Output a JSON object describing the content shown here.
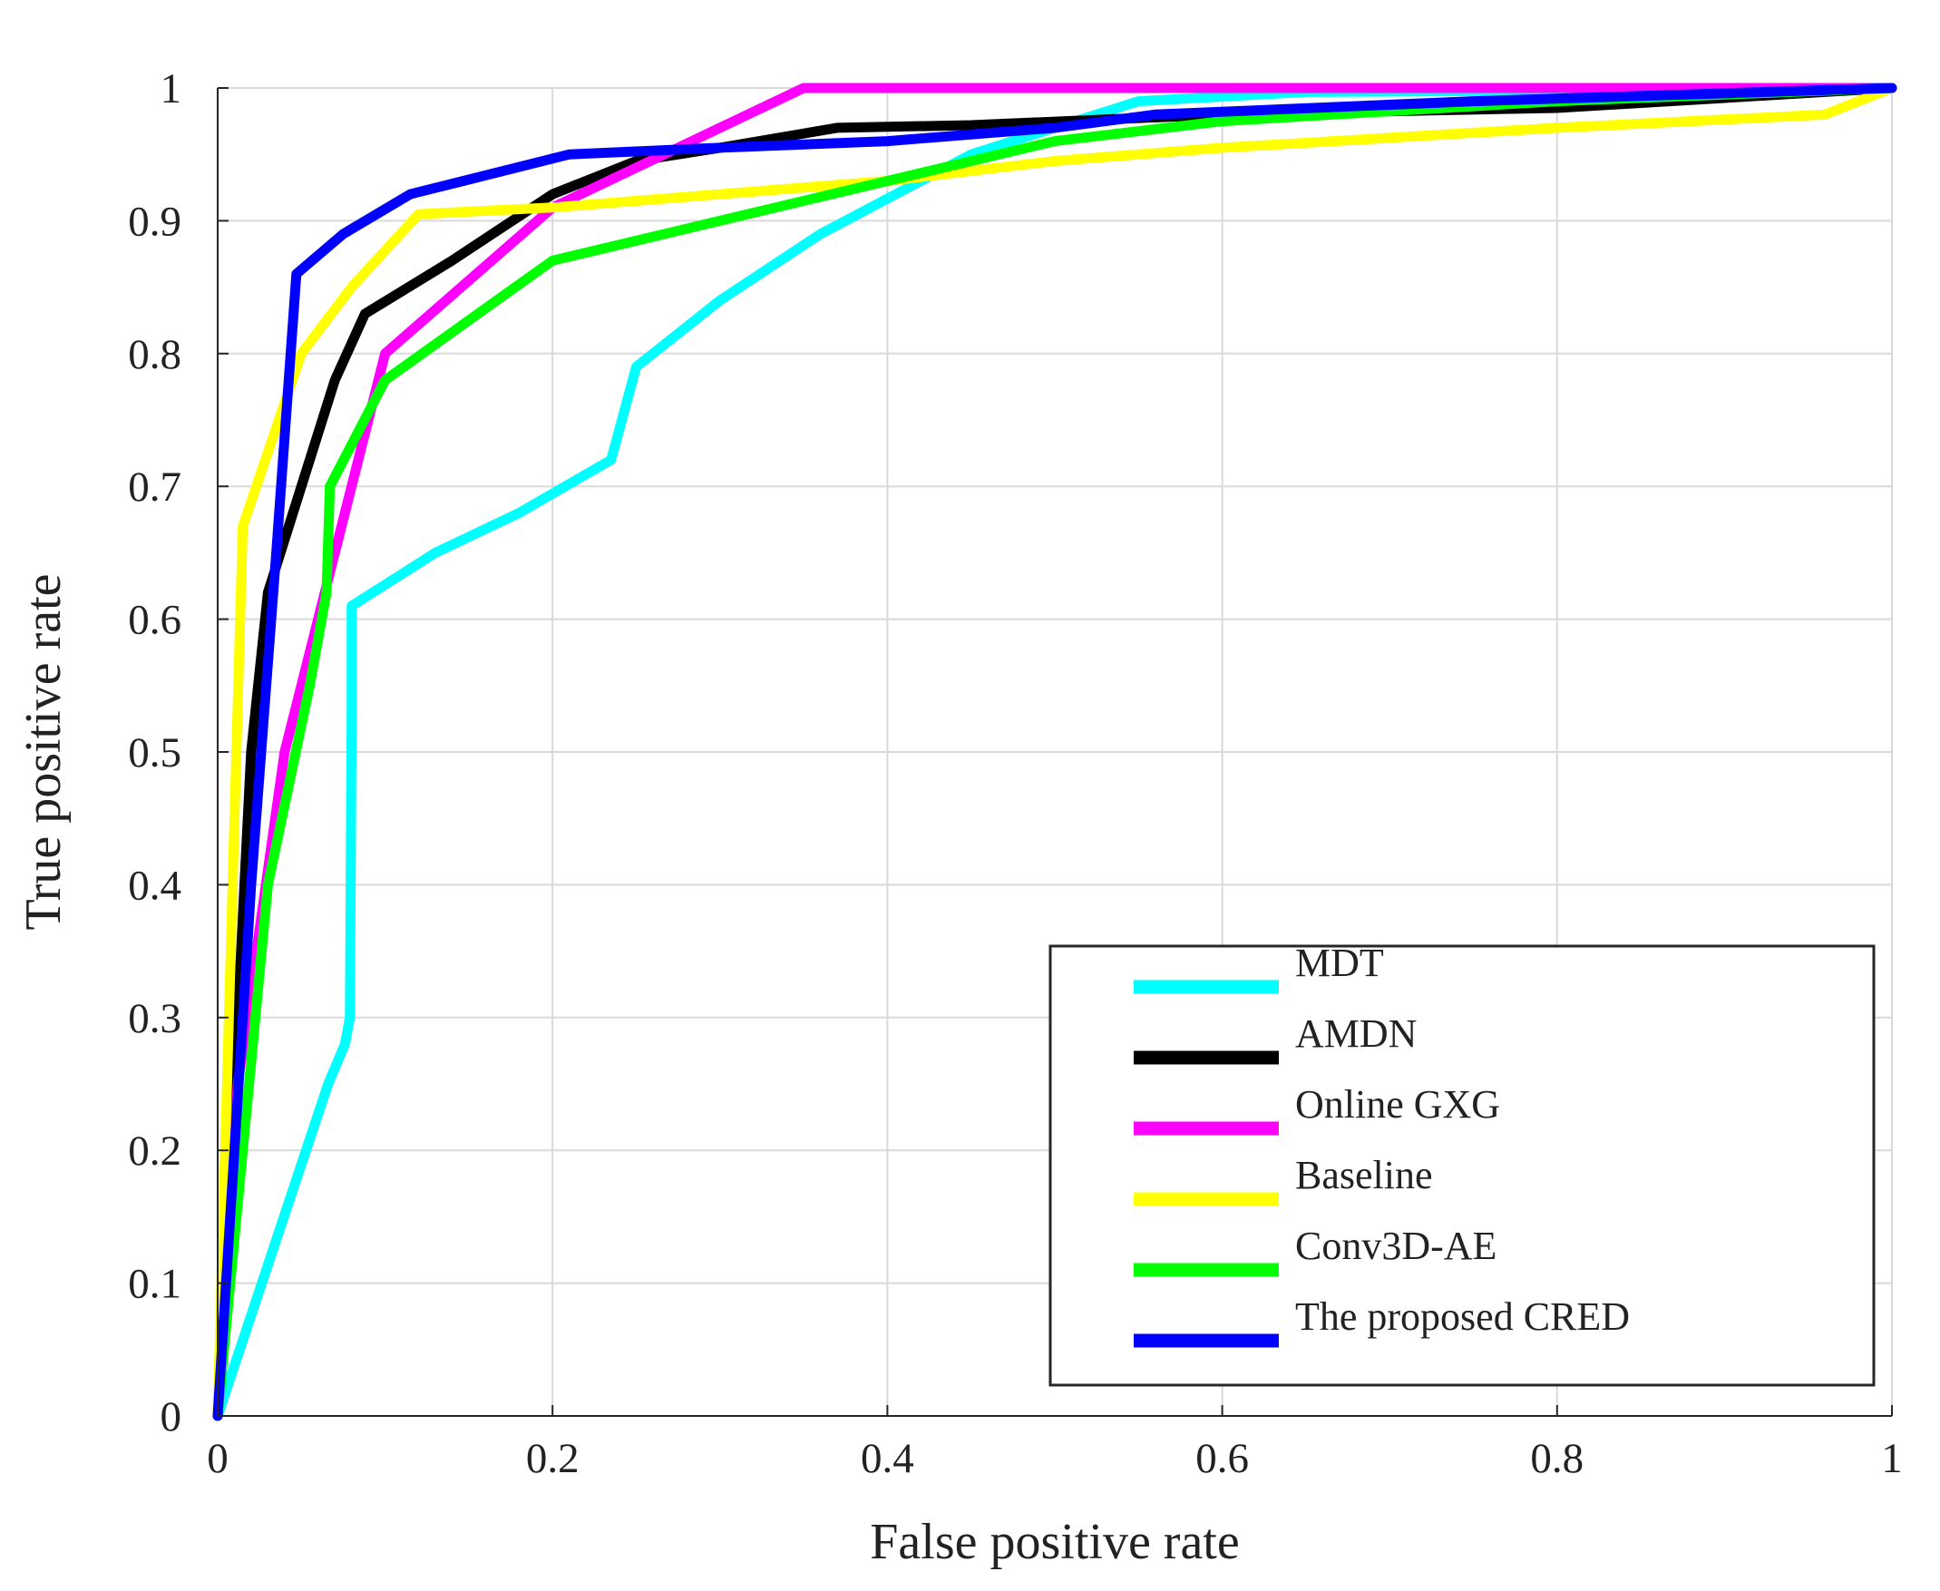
{
  "chart_data": {
    "type": "line",
    "title": "",
    "xlabel": "False positive rate",
    "ylabel": "True positive rate",
    "xlim": [
      0,
      1
    ],
    "ylim": [
      0,
      1
    ],
    "xticks": [
      "0",
      "0.2",
      "0.4",
      "0.6",
      "0.8",
      "1"
    ],
    "yticks": [
      "0",
      "0.1",
      "0.2",
      "0.3",
      "0.4",
      "0.5",
      "0.6",
      "0.7",
      "0.8",
      "0.9",
      "1"
    ],
    "grid": true,
    "legend_position": "bottom-right",
    "series": [
      {
        "name": "MDT",
        "color": "#00ffff",
        "x": [
          0,
          0.066,
          0.076,
          0.079,
          0.08,
          0.08,
          0.13,
          0.18,
          0.235,
          0.25,
          0.3,
          0.36,
          0.45,
          0.55,
          0.65,
          0.8,
          1
        ],
        "y": [
          0,
          0.25,
          0.28,
          0.3,
          0.53,
          0.61,
          0.65,
          0.68,
          0.72,
          0.79,
          0.84,
          0.89,
          0.95,
          0.99,
          0.997,
          0.998,
          1
        ]
      },
      {
        "name": "AMDN",
        "color": "#000000",
        "x": [
          0,
          0.02,
          0.03,
          0.05,
          0.07,
          0.088,
          0.14,
          0.2,
          0.25,
          0.3,
          0.37,
          0.45,
          0.6,
          0.8,
          1
        ],
        "y": [
          0,
          0.5,
          0.62,
          0.7,
          0.78,
          0.83,
          0.87,
          0.92,
          0.945,
          0.955,
          0.97,
          0.972,
          0.98,
          0.985,
          1
        ]
      },
      {
        "name": "Online GXG",
        "color": "#ff00ff",
        "x": [
          0,
          0.012,
          0.04,
          0.07,
          0.1,
          0.2,
          0.3,
          0.35,
          0.5,
          0.75,
          1
        ],
        "y": [
          0,
          0.25,
          0.5,
          0.65,
          0.8,
          0.91,
          0.97,
          1,
          1,
          1,
          1
        ]
      },
      {
        "name": "Baseline",
        "color": "#ffff00",
        "x": [
          0,
          0.01,
          0.015,
          0.05,
          0.08,
          0.12,
          0.2,
          0.3,
          0.4,
          0.5,
          0.6,
          0.8,
          0.96,
          1
        ],
        "y": [
          0,
          0.45,
          0.67,
          0.8,
          0.85,
          0.905,
          0.91,
          0.92,
          0.93,
          0.945,
          0.955,
          0.97,
          0.98,
          1
        ]
      },
      {
        "name": "Conv3D-AE",
        "color": "#00ff00",
        "x": [
          0,
          0.03,
          0.055,
          0.065,
          0.067,
          0.1,
          0.2,
          0.3,
          0.4,
          0.5,
          0.6,
          0.8,
          1
        ],
        "y": [
          0,
          0.4,
          0.55,
          0.62,
          0.7,
          0.78,
          0.87,
          0.9,
          0.93,
          0.96,
          0.975,
          0.99,
          1
        ]
      },
      {
        "name": "The proposed CRED",
        "color": "#0000ff",
        "x": [
          0,
          0.02,
          0.035,
          0.047,
          0.075,
          0.115,
          0.21,
          0.3,
          0.4,
          0.5,
          0.56,
          0.75,
          1
        ],
        "y": [
          0,
          0.4,
          0.65,
          0.86,
          0.89,
          0.92,
          0.95,
          0.955,
          0.96,
          0.97,
          0.98,
          0.99,
          1
        ]
      }
    ]
  }
}
